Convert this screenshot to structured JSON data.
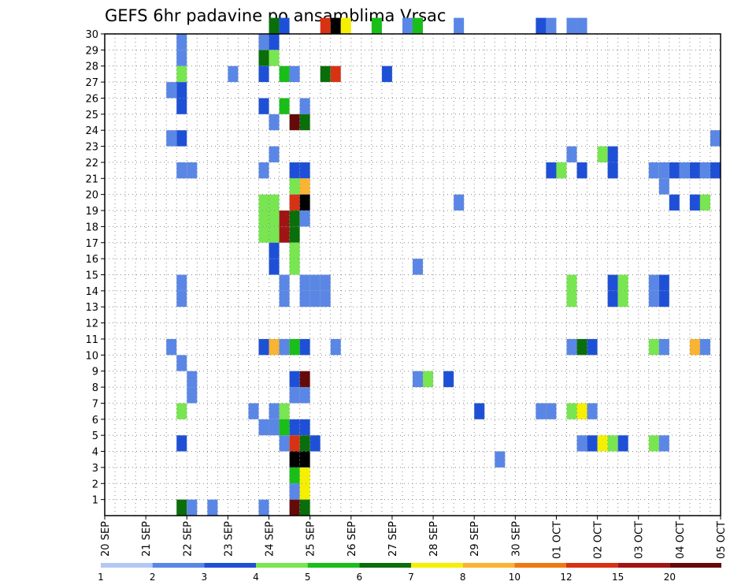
{
  "chart_data": {
    "type": "heatmap",
    "title": "GEFS 6hr padavine po ansamblima Vrsac",
    "xlabel": "",
    "ylabel": "",
    "x_tick_labels": [
      "20 SEP",
      "21 SEP",
      "22 SEP",
      "23 SEP",
      "24 SEP",
      "25 SEP",
      "26 SEP",
      "27 SEP",
      "28 SEP",
      "29 SEP",
      "30 SEP",
      "01 OCT",
      "02 OCT",
      "03 OCT",
      "04 OCT",
      "05 OCT"
    ],
    "x_range_steps": [
      0,
      60
    ],
    "steps_per_day": 4,
    "y_tick_labels": [
      "1",
      "2",
      "3",
      "4",
      "5",
      "6",
      "7",
      "8",
      "9",
      "10",
      "11",
      "12",
      "13",
      "14",
      "15",
      "16",
      "17",
      "18",
      "19",
      "20",
      "21",
      "22",
      "23",
      "24",
      "25",
      "26",
      "27",
      "28",
      "29",
      "30"
    ],
    "ylim": [
      0,
      30
    ],
    "grid": true,
    "colorbar": {
      "labels": [
        "1",
        "2",
        "3",
        "4",
        "5",
        "6",
        "7",
        "8",
        "10",
        "12",
        "15",
        "20"
      ],
      "colors": [
        "#b4c8f5",
        "#5a87e6",
        "#1e50d7",
        "#78e650",
        "#19be19",
        "#0a6e0a",
        "#f5f000",
        "#f8b432",
        "#f07814",
        "#d73214",
        "#a01414",
        "#640a0a"
      ]
    },
    "cells": [
      [
        30,
        16,
        5
      ],
      [
        30,
        17,
        2
      ],
      [
        30,
        21,
        9
      ],
      [
        30,
        22,
        12
      ],
      [
        30,
        23,
        6
      ],
      [
        30,
        26,
        4
      ],
      [
        30,
        29,
        1
      ],
      [
        30,
        30,
        4
      ],
      [
        30,
        34,
        1
      ],
      [
        30,
        42,
        2
      ],
      [
        30,
        43,
        1
      ],
      [
        30,
        45,
        1
      ],
      [
        30,
        46,
        1
      ],
      [
        29,
        7,
        1
      ],
      [
        29,
        15,
        1
      ],
      [
        29,
        16,
        2
      ],
      [
        28,
        7,
        1
      ],
      [
        28,
        15,
        5
      ],
      [
        28,
        16,
        3
      ],
      [
        27,
        7,
        3
      ],
      [
        27,
        12,
        1
      ],
      [
        27,
        15,
        2
      ],
      [
        27,
        17,
        4
      ],
      [
        27,
        18,
        1
      ],
      [
        27,
        21,
        5
      ],
      [
        27,
        22,
        9
      ],
      [
        27,
        27,
        2
      ],
      [
        26,
        6,
        1
      ],
      [
        26,
        7,
        2
      ],
      [
        25,
        7,
        2
      ],
      [
        25,
        15,
        2
      ],
      [
        25,
        17,
        4
      ],
      [
        25,
        19,
        1
      ],
      [
        24,
        16,
        1
      ],
      [
        24,
        18,
        11
      ],
      [
        24,
        19,
        5
      ],
      [
        23,
        6,
        1
      ],
      [
        23,
        7,
        2
      ],
      [
        23,
        59,
        1
      ],
      [
        22,
        16,
        1
      ],
      [
        22,
        45,
        1
      ],
      [
        22,
        48,
        3
      ],
      [
        22,
        49,
        2
      ],
      [
        21,
        7,
        1
      ],
      [
        21,
        8,
        1
      ],
      [
        21,
        15,
        1
      ],
      [
        21,
        18,
        2
      ],
      [
        21,
        19,
        2
      ],
      [
        21,
        43,
        2
      ],
      [
        21,
        44,
        3
      ],
      [
        21,
        46,
        2
      ],
      [
        21,
        49,
        2
      ],
      [
        21,
        53,
        1
      ],
      [
        21,
        54,
        1
      ],
      [
        21,
        55,
        2
      ],
      [
        21,
        56,
        1
      ],
      [
        21,
        57,
        2
      ],
      [
        21,
        58,
        1
      ],
      [
        21,
        59,
        2
      ],
      [
        20,
        18,
        3
      ],
      [
        20,
        19,
        7
      ],
      [
        20,
        54,
        1
      ],
      [
        19,
        15,
        3
      ],
      [
        19,
        16,
        3
      ],
      [
        19,
        18,
        9
      ],
      [
        19,
        19,
        12
      ],
      [
        19,
        34,
        1
      ],
      [
        19,
        55,
        2
      ],
      [
        19,
        57,
        2
      ],
      [
        19,
        58,
        3
      ],
      [
        18,
        15,
        3
      ],
      [
        18,
        16,
        3
      ],
      [
        18,
        17,
        10
      ],
      [
        18,
        18,
        5
      ],
      [
        18,
        19,
        1
      ],
      [
        17,
        15,
        3
      ],
      [
        17,
        16,
        3
      ],
      [
        17,
        17,
        10
      ],
      [
        17,
        18,
        5
      ],
      [
        16,
        16,
        2
      ],
      [
        16,
        18,
        3
      ],
      [
        15,
        16,
        2
      ],
      [
        15,
        18,
        3
      ],
      [
        15,
        30,
        1
      ],
      [
        14,
        7,
        1
      ],
      [
        14,
        17,
        1
      ],
      [
        14,
        19,
        1
      ],
      [
        14,
        20,
        1
      ],
      [
        14,
        21,
        1
      ],
      [
        14,
        45,
        3
      ],
      [
        14,
        49,
        2
      ],
      [
        14,
        50,
        3
      ],
      [
        14,
        53,
        1
      ],
      [
        14,
        54,
        2
      ],
      [
        13,
        7,
        1
      ],
      [
        13,
        17,
        1
      ],
      [
        13,
        19,
        1
      ],
      [
        13,
        20,
        1
      ],
      [
        13,
        21,
        1
      ],
      [
        13,
        45,
        3
      ],
      [
        13,
        49,
        2
      ],
      [
        13,
        50,
        3
      ],
      [
        13,
        53,
        1
      ],
      [
        13,
        54,
        2
      ],
      [
        10,
        6,
        1
      ],
      [
        10,
        15,
        2
      ],
      [
        10,
        16,
        7
      ],
      [
        10,
        17,
        1
      ],
      [
        10,
        18,
        4
      ],
      [
        10,
        19,
        2
      ],
      [
        10,
        22,
        1
      ],
      [
        10,
        45,
        1
      ],
      [
        10,
        46,
        5
      ],
      [
        10,
        47,
        2
      ],
      [
        10,
        53,
        3
      ],
      [
        10,
        54,
        1
      ],
      [
        10,
        57,
        7
      ],
      [
        10,
        58,
        1
      ],
      [
        9,
        7,
        1
      ],
      [
        8,
        8,
        1
      ],
      [
        8,
        18,
        2
      ],
      [
        8,
        19,
        11
      ],
      [
        8,
        30,
        1
      ],
      [
        8,
        31,
        3
      ],
      [
        8,
        33,
        2
      ],
      [
        7,
        8,
        1
      ],
      [
        7,
        18,
        1
      ],
      [
        7,
        19,
        1
      ],
      [
        6,
        7,
        3
      ],
      [
        6,
        14,
        1
      ],
      [
        6,
        16,
        1
      ],
      [
        6,
        17,
        3
      ],
      [
        6,
        36,
        2
      ],
      [
        6,
        42,
        1
      ],
      [
        6,
        43,
        1
      ],
      [
        6,
        45,
        3
      ],
      [
        6,
        46,
        6
      ],
      [
        6,
        47,
        1
      ],
      [
        5,
        15,
        1
      ],
      [
        5,
        16,
        1
      ],
      [
        5,
        17,
        4
      ],
      [
        5,
        18,
        2
      ],
      [
        5,
        19,
        2
      ],
      [
        4,
        7,
        2
      ],
      [
        4,
        17,
        1
      ],
      [
        4,
        18,
        9
      ],
      [
        4,
        19,
        5
      ],
      [
        4,
        20,
        2
      ],
      [
        4,
        46,
        1
      ],
      [
        4,
        47,
        2
      ],
      [
        4,
        48,
        6
      ],
      [
        4,
        49,
        3
      ],
      [
        4,
        50,
        2
      ],
      [
        4,
        53,
        3
      ],
      [
        4,
        54,
        1
      ],
      [
        3,
        18,
        12
      ],
      [
        3,
        19,
        12
      ],
      [
        3,
        38,
        1
      ],
      [
        2,
        18,
        4
      ],
      [
        2,
        19,
        6
      ],
      [
        1,
        18,
        1
      ],
      [
        1,
        19,
        6
      ],
      [
        0,
        7,
        5
      ],
      [
        0,
        8,
        1
      ],
      [
        0,
        10,
        1
      ],
      [
        0,
        15,
        1
      ],
      [
        0,
        18,
        11
      ],
      [
        0,
        19,
        5
      ]
    ]
  }
}
